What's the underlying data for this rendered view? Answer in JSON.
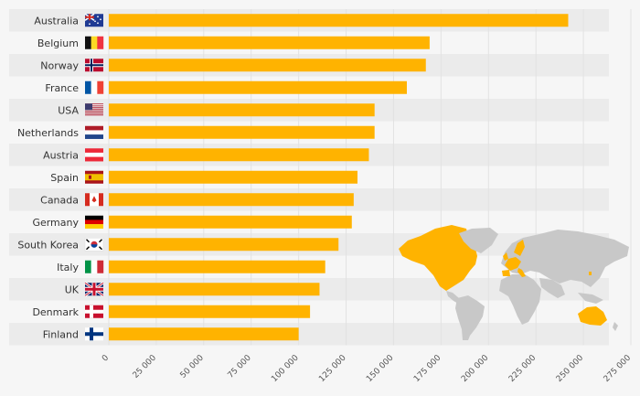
{
  "chart_data": {
    "type": "bar",
    "orientation": "horizontal",
    "title": "",
    "xlabel": "",
    "ylabel": "",
    "xlim": [
      0,
      275000
    ],
    "grid": true,
    "legend": "none",
    "bar_color": "#ffb300",
    "categories": [
      "Australia",
      "Belgium",
      "Norway",
      "France",
      "USA",
      "Netherlands",
      "Austria",
      "Spain",
      "Canada",
      "Germany",
      "South Korea",
      "Italy",
      "UK",
      "Denmark",
      "Finland"
    ],
    "flags": [
      "australia-flag",
      "belgium-flag",
      "norway-flag",
      "france-flag",
      "usa-flag",
      "netherlands-flag",
      "austria-flag",
      "spain-flag",
      "canada-flag",
      "germany-flag",
      "south-korea-flag",
      "italy-flag",
      "uk-flag",
      "denmark-flag",
      "finland-flag"
    ],
    "values": [
      242000,
      169000,
      167000,
      157000,
      140000,
      140000,
      137000,
      131000,
      129000,
      128000,
      121000,
      114000,
      111000,
      106000,
      100000
    ],
    "xticks": [
      0,
      25000,
      50000,
      75000,
      100000,
      125000,
      150000,
      175000,
      200000,
      225000,
      250000,
      275000
    ],
    "xtick_labels": [
      "0",
      "25 000",
      "50 000",
      "75 000",
      "100 000",
      "125 000",
      "150 000",
      "175 000",
      "200 000",
      "225 000",
      "250 000",
      "275 000"
    ]
  },
  "decorations": {
    "world_map": "world-map-highlighting-countries",
    "map_land_color": "#c8c8c8",
    "map_highlight_color": "#ffb300"
  }
}
